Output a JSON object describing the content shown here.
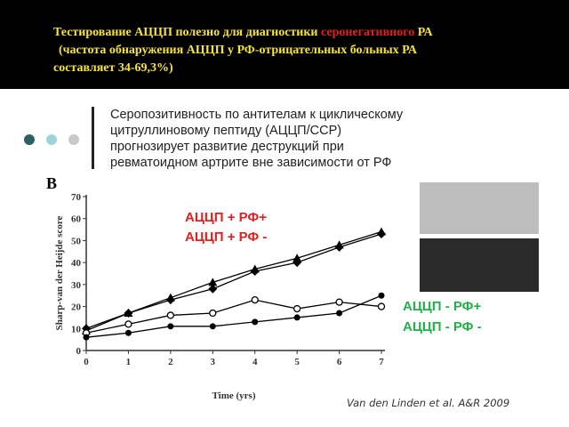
{
  "header": {
    "line1": [
      "Тестирование АЦЦП полезно для диагностики ",
      "серонегативного",
      " РА"
    ],
    "line2": "(частота обнаружения АЦЦП у РФ-отрицательных больных РА",
    "line3": "составляет 34-69,3%)"
  },
  "statement": [
    "Серопозитивность по антителам к циклическому",
    "цитруллиновому пептиду (АЦЦП/ССР)",
    "прогнозирует развитие деструкций при",
    "ревматоидном артрите вне зависимости от РФ"
  ],
  "citation": "Van den Linden et al. A&R 2009",
  "chart_data": {
    "type": "line",
    "panel_label": "B",
    "y_label": "Sharp-van der Heijde score",
    "x_label": "Time (yrs)",
    "x": [
      0,
      1,
      2,
      3,
      4,
      5,
      6,
      7
    ],
    "xlim": [
      0,
      7
    ],
    "xticks": [
      0,
      1,
      2,
      3,
      4,
      5,
      6,
      7
    ],
    "ylim": [
      0,
      70
    ],
    "yticks": [
      0,
      10,
      20,
      30,
      40,
      50,
      60,
      70
    ],
    "series": [
      {
        "name": "АЦЦП + РФ+",
        "color": "#000000",
        "label_color": "#e02020",
        "marker": "diamond",
        "values": [
          10,
          17,
          23,
          28,
          36,
          40,
          47,
          53
        ]
      },
      {
        "name": "АЦЦП + РФ -",
        "color": "#000000",
        "label_color": "#e02020",
        "marker": "triangle",
        "values": [
          9,
          17,
          24,
          31,
          37,
          42,
          48,
          54
        ]
      },
      {
        "name": "АЦЦП - РФ+",
        "color": "#000000",
        "label_color": "#22b04a",
        "marker": "circle-open",
        "values": [
          8,
          12,
          16,
          17,
          23,
          19,
          22,
          20
        ]
      },
      {
        "name": "АЦЦП - РФ -",
        "color": "#000000",
        "label_color": "#22b04a",
        "marker": "circle",
        "values": [
          6,
          8,
          11,
          11,
          13,
          15,
          17,
          25
        ]
      }
    ]
  }
}
